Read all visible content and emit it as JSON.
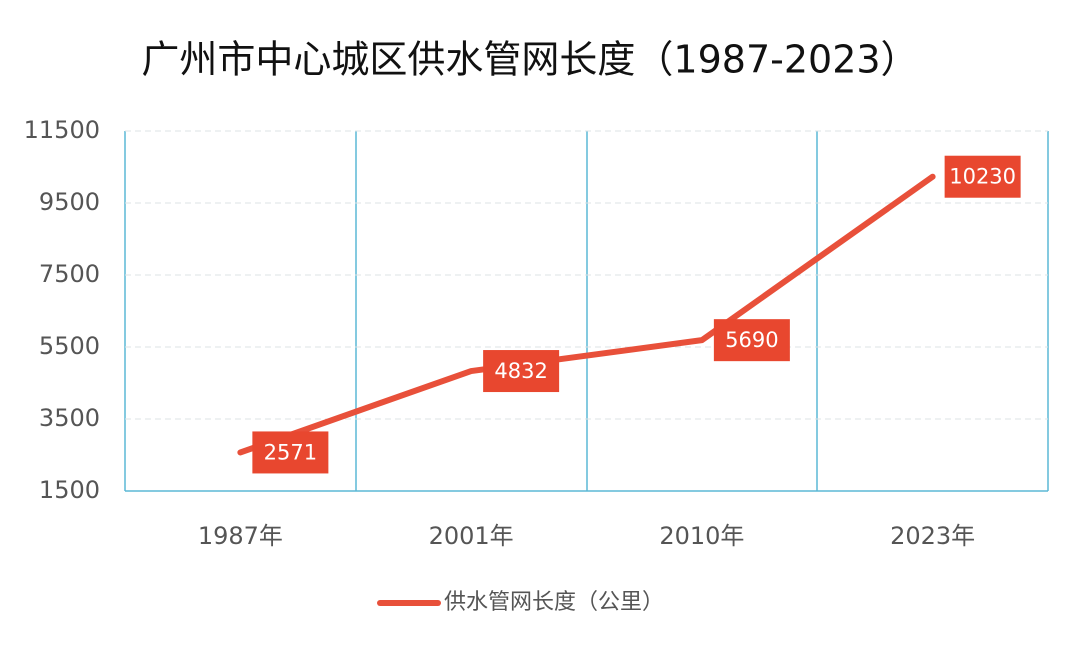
{
  "chart_data": {
    "type": "line",
    "title": "广州市中心城区供水管网长度（1987-2023）",
    "categories": [
      "1987年",
      "2001年",
      "2010年",
      "2023年"
    ],
    "series": [
      {
        "name": "供水管网长度（公里）",
        "color": "#e8503a",
        "values": [
          2571,
          4832,
          5690,
          10230
        ]
      }
    ],
    "ylim": [
      1500,
      11500
    ],
    "yticks": [
      1500,
      3500,
      5500,
      7500,
      9500,
      11500
    ],
    "grid": true,
    "legend": "bottom"
  }
}
